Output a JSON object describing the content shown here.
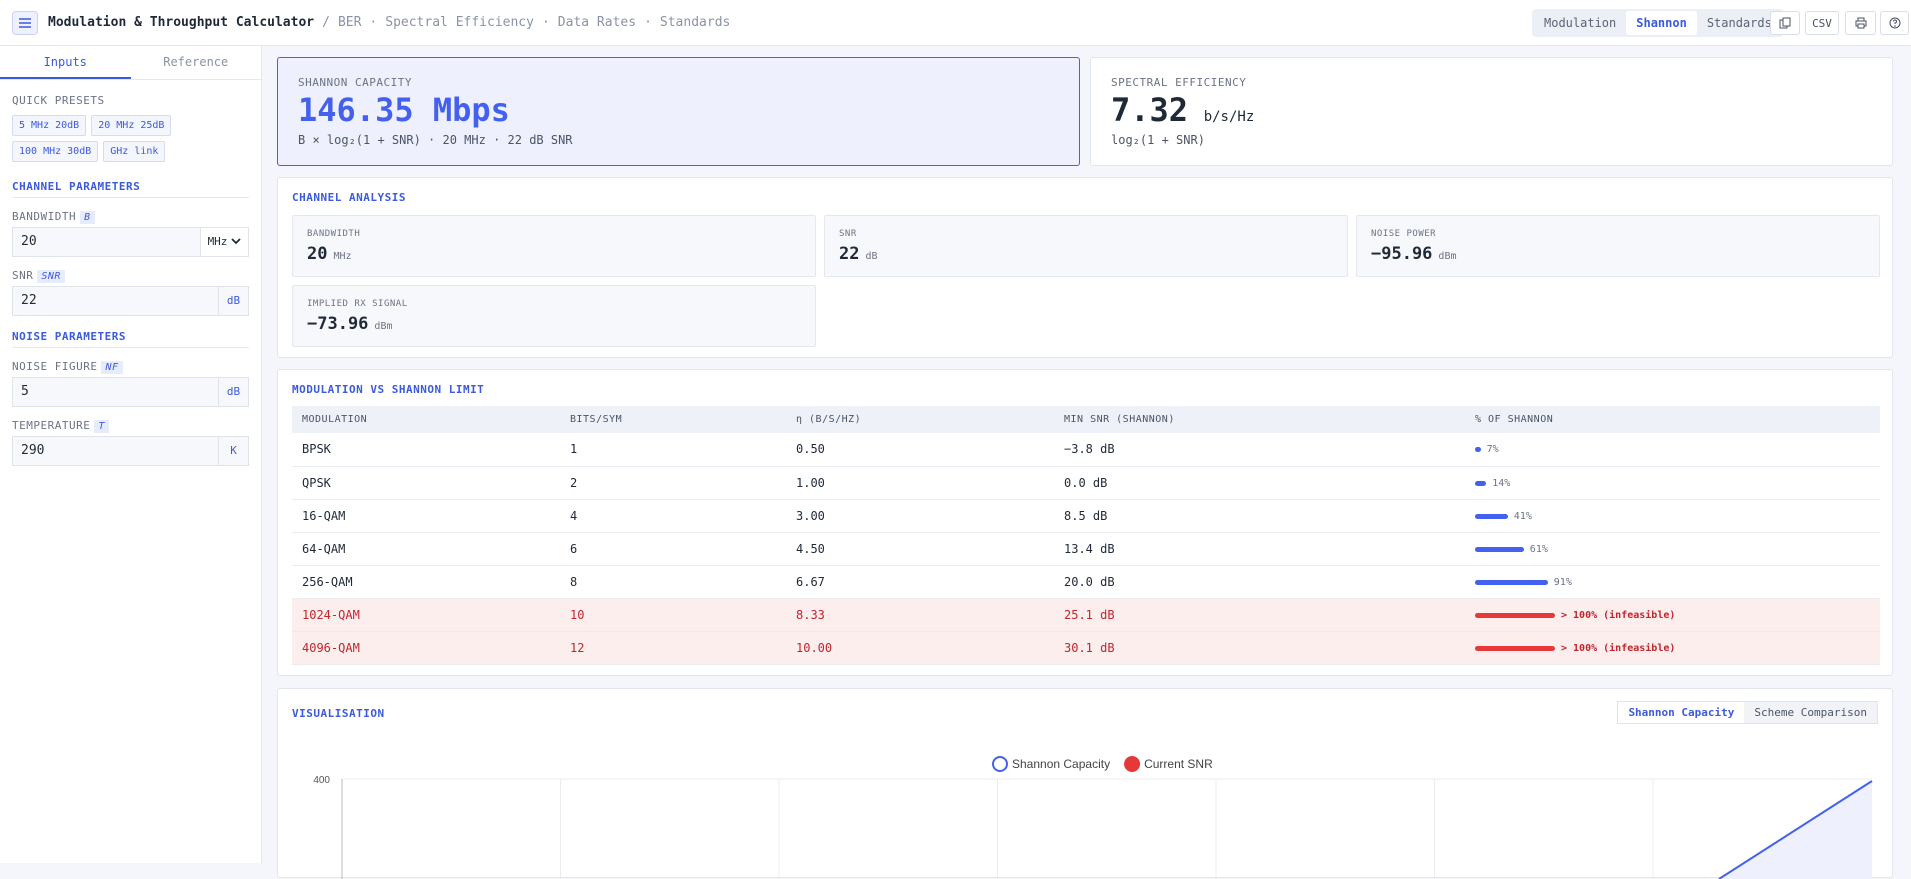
{
  "header": {
    "title": "Modulation & Throughput Calculator",
    "title_separator": "/",
    "breadcrumb": [
      "BER",
      "Spectral Efficiency",
      "Data Rates",
      "Standards"
    ],
    "breadcrumb_separator": "·",
    "tabs": [
      "Modulation",
      "Shannon",
      "Standards"
    ],
    "active_tab": 1,
    "csv_button": "CSV"
  },
  "sidebar": {
    "tabs": [
      "Inputs",
      "Reference"
    ],
    "active_tab": 0,
    "presets_heading": "QUICK PRESETS",
    "presets": [
      "5 MHz 20dB",
      "20 MHz 25dB",
      "100 MHz 30dB",
      "GHz link"
    ],
    "channel_heading": "CHANNEL PARAMETERS",
    "channel_fields": [
      {
        "label": "BANDWIDTH",
        "symbol": "B",
        "value": "20",
        "unit": "MHz",
        "select": true
      },
      {
        "label": "SNR",
        "symbol": "SNR",
        "value": "22",
        "unit": "dB"
      }
    ],
    "noise_heading": "NOISE PARAMETERS",
    "noise_fields": [
      {
        "label": "NOISE FIGURE",
        "symbol": "NF",
        "value": "5",
        "unit": "dB"
      },
      {
        "label": "TEMPERATURE",
        "symbol": "T",
        "value": "290",
        "unit": "K"
      }
    ]
  },
  "cards": {
    "shannon": {
      "label": "SHANNON CAPACITY",
      "value": "146.35 Mbps",
      "formula": "B × log₂(1 + SNR) · 20 MHz · 22 dB SNR"
    },
    "spectral": {
      "label": "SPECTRAL EFFICIENCY",
      "value": "7.32",
      "unit": "b/s/Hz",
      "formula": "log₂(1 + SNR)"
    }
  },
  "channel_analysis": {
    "heading": "CHANNEL ANALYSIS",
    "items": [
      {
        "label": "BANDWIDTH",
        "value": "20",
        "unit": "MHz"
      },
      {
        "label": "SNR",
        "value": "22",
        "unit": "dB"
      },
      {
        "label": "NOISE POWER",
        "value": "−95.96",
        "unit": "dBm"
      },
      {
        "label": "IMPLIED RX SIGNAL",
        "value": "−73.96",
        "unit": "dBm"
      }
    ]
  },
  "modulation_table": {
    "heading": "MODULATION VS SHANNON LIMIT",
    "columns": [
      "MODULATION",
      "BITS/SYM",
      "η (B/S/HZ)",
      "MIN SNR (SHANNON)",
      "% OF SHANNON"
    ],
    "rows": [
      {
        "cells": [
          "BPSK",
          "1",
          "0.50",
          "−3.8 dB"
        ],
        "pct": {
          "value": 7,
          "label": "7%"
        }
      },
      {
        "cells": [
          "QPSK",
          "2",
          "1.00",
          "0.0 dB"
        ],
        "pct": {
          "value": 14,
          "label": "14%"
        }
      },
      {
        "cells": [
          "16-QAM",
          "4",
          "3.00",
          "8.5 dB"
        ],
        "pct": {
          "value": 41,
          "label": "41%"
        }
      },
      {
        "cells": [
          "64-QAM",
          "6",
          "4.50",
          "13.4 dB"
        ],
        "pct": {
          "value": 61,
          "label": "61%"
        }
      },
      {
        "cells": [
          "256-QAM",
          "8",
          "6.67",
          "20.0 dB"
        ],
        "pct": {
          "value": 91,
          "label": "91%"
        }
      },
      {
        "cells": [
          "1024-QAM",
          "10",
          "8.33",
          "25.1 dB"
        ],
        "pct": {
          "label": "> 100% (infeasible)"
        },
        "infeasible": true
      },
      {
        "cells": [
          "4096-QAM",
          "12",
          "10.00",
          "30.1 dB"
        ],
        "pct": {
          "label": "> 100% (infeasible)"
        },
        "infeasible": true
      }
    ]
  },
  "visualisation": {
    "heading": "VISUALISATION",
    "toggle": [
      "Shannon Capacity",
      "Scheme Comparison"
    ],
    "active_toggle": 0,
    "chart": {
      "legend": [
        {
          "name": "Shannon Capacity",
          "color": "#4361ee"
        },
        {
          "name": "Current SNR",
          "color": "#e5383b"
        }
      ],
      "ylim": [
        0,
        400
      ],
      "yticks": [
        400
      ]
    }
  }
}
